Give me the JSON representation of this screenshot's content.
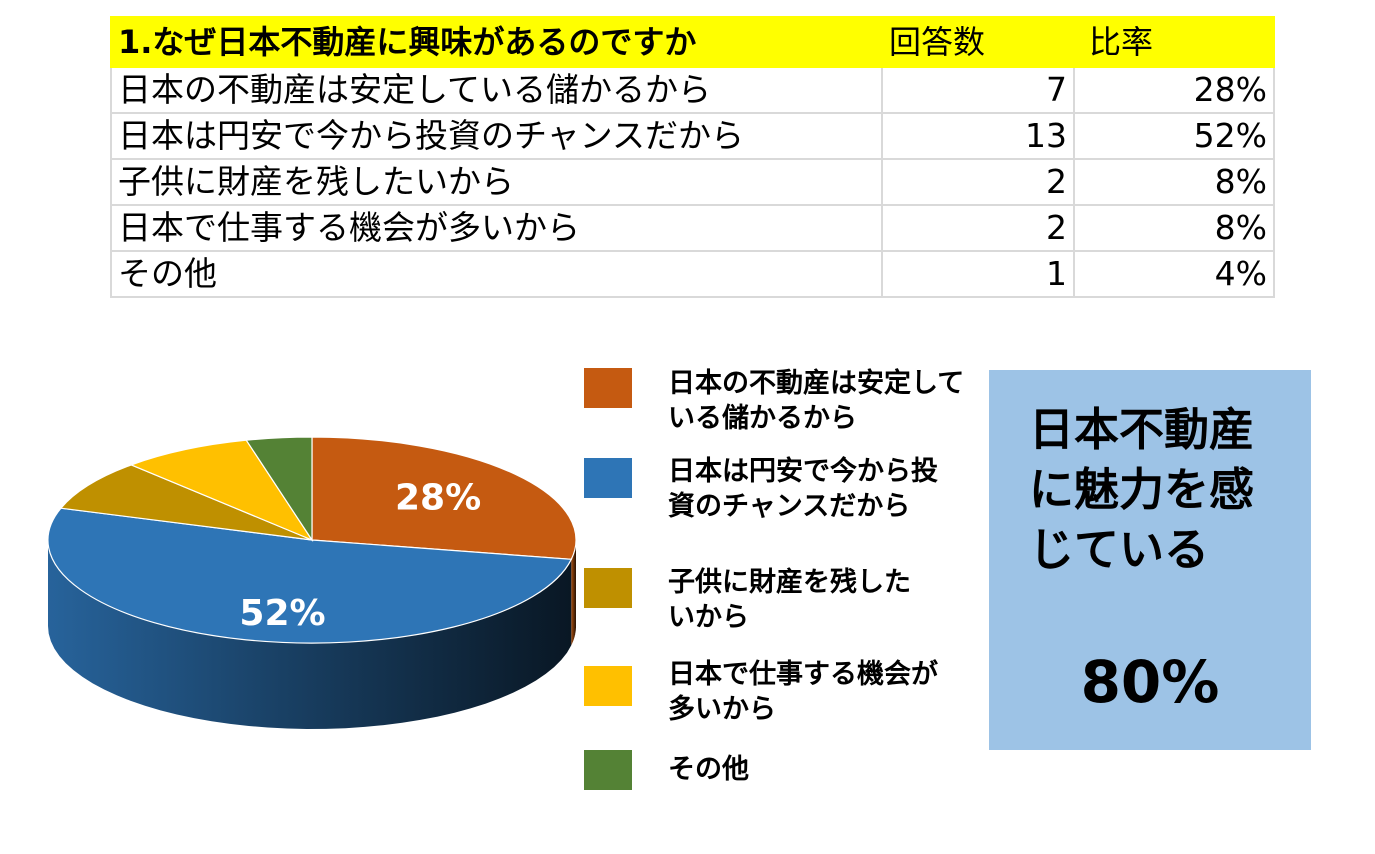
{
  "table": {
    "headers": [
      "1.なぜ日本不動産に興味があるのですか",
      "回答数",
      "比率"
    ],
    "rows": [
      [
        "日本の不動産は安定している儲かるから",
        "7",
        "28%"
      ],
      [
        "日本は円安で今から投資のチャンスだから",
        "13",
        "52%"
      ],
      [
        "子供に財産を残したいから",
        "2",
        "8%"
      ],
      [
        "日本で仕事する機会が多いから",
        "2",
        "8%"
      ],
      [
        "その他",
        "1",
        "4%"
      ]
    ]
  },
  "chart_data": {
    "type": "pie",
    "categories": [
      "日本の不動産は安定している儲かるから",
      "日本は円安で今から投資のチャンスだから",
      "子供に財産を残したいから",
      "日本で仕事する機会が多いから",
      "その他"
    ],
    "values": [
      28,
      52,
      8,
      8,
      4
    ],
    "counts": [
      7,
      13,
      2,
      2,
      1
    ],
    "colors": [
      "#c55a11",
      "#2e75b6",
      "#bf9000",
      "#ffc000",
      "#548235"
    ],
    "data_labels": [
      "28%",
      "52%",
      "",
      "",
      ""
    ],
    "legend_labels": [
      "日本の不動産は安定している儲かるから",
      "日本は円安で今から投資のチャンスだから",
      "子供に財産を残したいから",
      "日本で仕事する機会が多いから",
      "その他"
    ],
    "legend_position": "right",
    "style": "3d"
  },
  "callout": {
    "text": "日本不動産に魅力を感じている",
    "value": "80%",
    "color": "#9dc3e6"
  }
}
